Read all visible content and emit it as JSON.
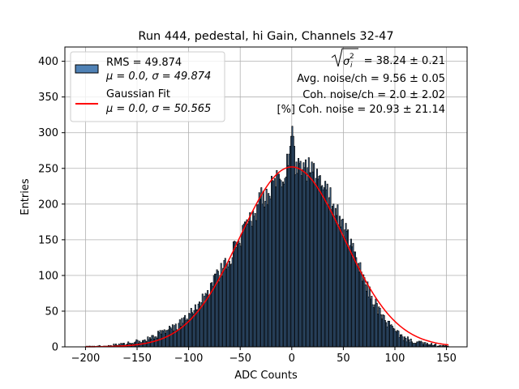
{
  "chart_data": {
    "type": "bar",
    "title": "Run 444, pedestal, hi Gain, Channels 32-47",
    "xlabel": "ADC Counts",
    "ylabel": "Entries",
    "xlim": [
      -220,
      170
    ],
    "ylim": [
      0,
      420
    ],
    "xticks": [
      -200,
      -150,
      -100,
      -50,
      0,
      50,
      100,
      150
    ],
    "yticks": [
      0,
      50,
      100,
      150,
      200,
      250,
      300,
      350,
      400
    ],
    "xtick_labels": [
      "−200",
      "−150",
      "−100",
      "−50",
      "0",
      "50",
      "100",
      "150"
    ],
    "ytick_labels": [
      "0",
      "50",
      "100",
      "150",
      "200",
      "250",
      "300",
      "350",
      "400"
    ],
    "grid": true,
    "legend_position": "top-left",
    "histogram": {
      "name": "RMS = 49.874",
      "label_line2": "μ = 0.0, σ = 49.874",
      "color": "#4f81b5",
      "edgecolor": "#000000",
      "bin_start": -200,
      "bin_width": 1,
      "profile": [
        {
          "x": -200,
          "y": 0
        },
        {
          "x": -180,
          "y": 1
        },
        {
          "x": -170,
          "y": 3
        },
        {
          "x": -160,
          "y": 5
        },
        {
          "x": -150,
          "y": 7
        },
        {
          "x": -140,
          "y": 11
        },
        {
          "x": -130,
          "y": 17
        },
        {
          "x": -120,
          "y": 23
        },
        {
          "x": -110,
          "y": 30
        },
        {
          "x": -100,
          "y": 43
        },
        {
          "x": -90,
          "y": 58
        },
        {
          "x": -80,
          "y": 80
        },
        {
          "x": -70,
          "y": 102
        },
        {
          "x": -60,
          "y": 125
        },
        {
          "x": -50,
          "y": 152
        },
        {
          "x": -40,
          "y": 178
        },
        {
          "x": -30,
          "y": 205
        },
        {
          "x": -20,
          "y": 222
        },
        {
          "x": -10,
          "y": 240
        },
        {
          "x": 0,
          "y": 262
        },
        {
          "x": 10,
          "y": 255
        },
        {
          "x": 20,
          "y": 245
        },
        {
          "x": 30,
          "y": 225
        },
        {
          "x": 40,
          "y": 200
        },
        {
          "x": 50,
          "y": 168
        },
        {
          "x": 60,
          "y": 132
        },
        {
          "x": 70,
          "y": 92
        },
        {
          "x": 80,
          "y": 62
        },
        {
          "x": 90,
          "y": 38
        },
        {
          "x": 100,
          "y": 22
        },
        {
          "x": 110,
          "y": 11
        },
        {
          "x": 120,
          "y": 7
        },
        {
          "x": 130,
          "y": 4
        },
        {
          "x": 140,
          "y": 2
        },
        {
          "x": 150,
          "y": 1
        },
        {
          "x": 153,
          "y": 0
        }
      ],
      "peak_max": 309
    },
    "fit": {
      "name": "Gaussian Fit",
      "label_line2": "μ = 0.0, σ = 50.565",
      "color": "#ff0000",
      "mu": 0.0,
      "sigma": 50.565,
      "amplitude": 252,
      "x_range": [
        -200,
        152
      ]
    },
    "annotations": {
      "line1_value": " = 38.24 ± 0.21",
      "line2": "Avg. noise/ch = 9.56 ± 0.05",
      "line3": "Coh. noise/ch = 2.0 ± 2.02",
      "line4": "[%] Coh. noise = 20.93 ± 21.14"
    }
  }
}
